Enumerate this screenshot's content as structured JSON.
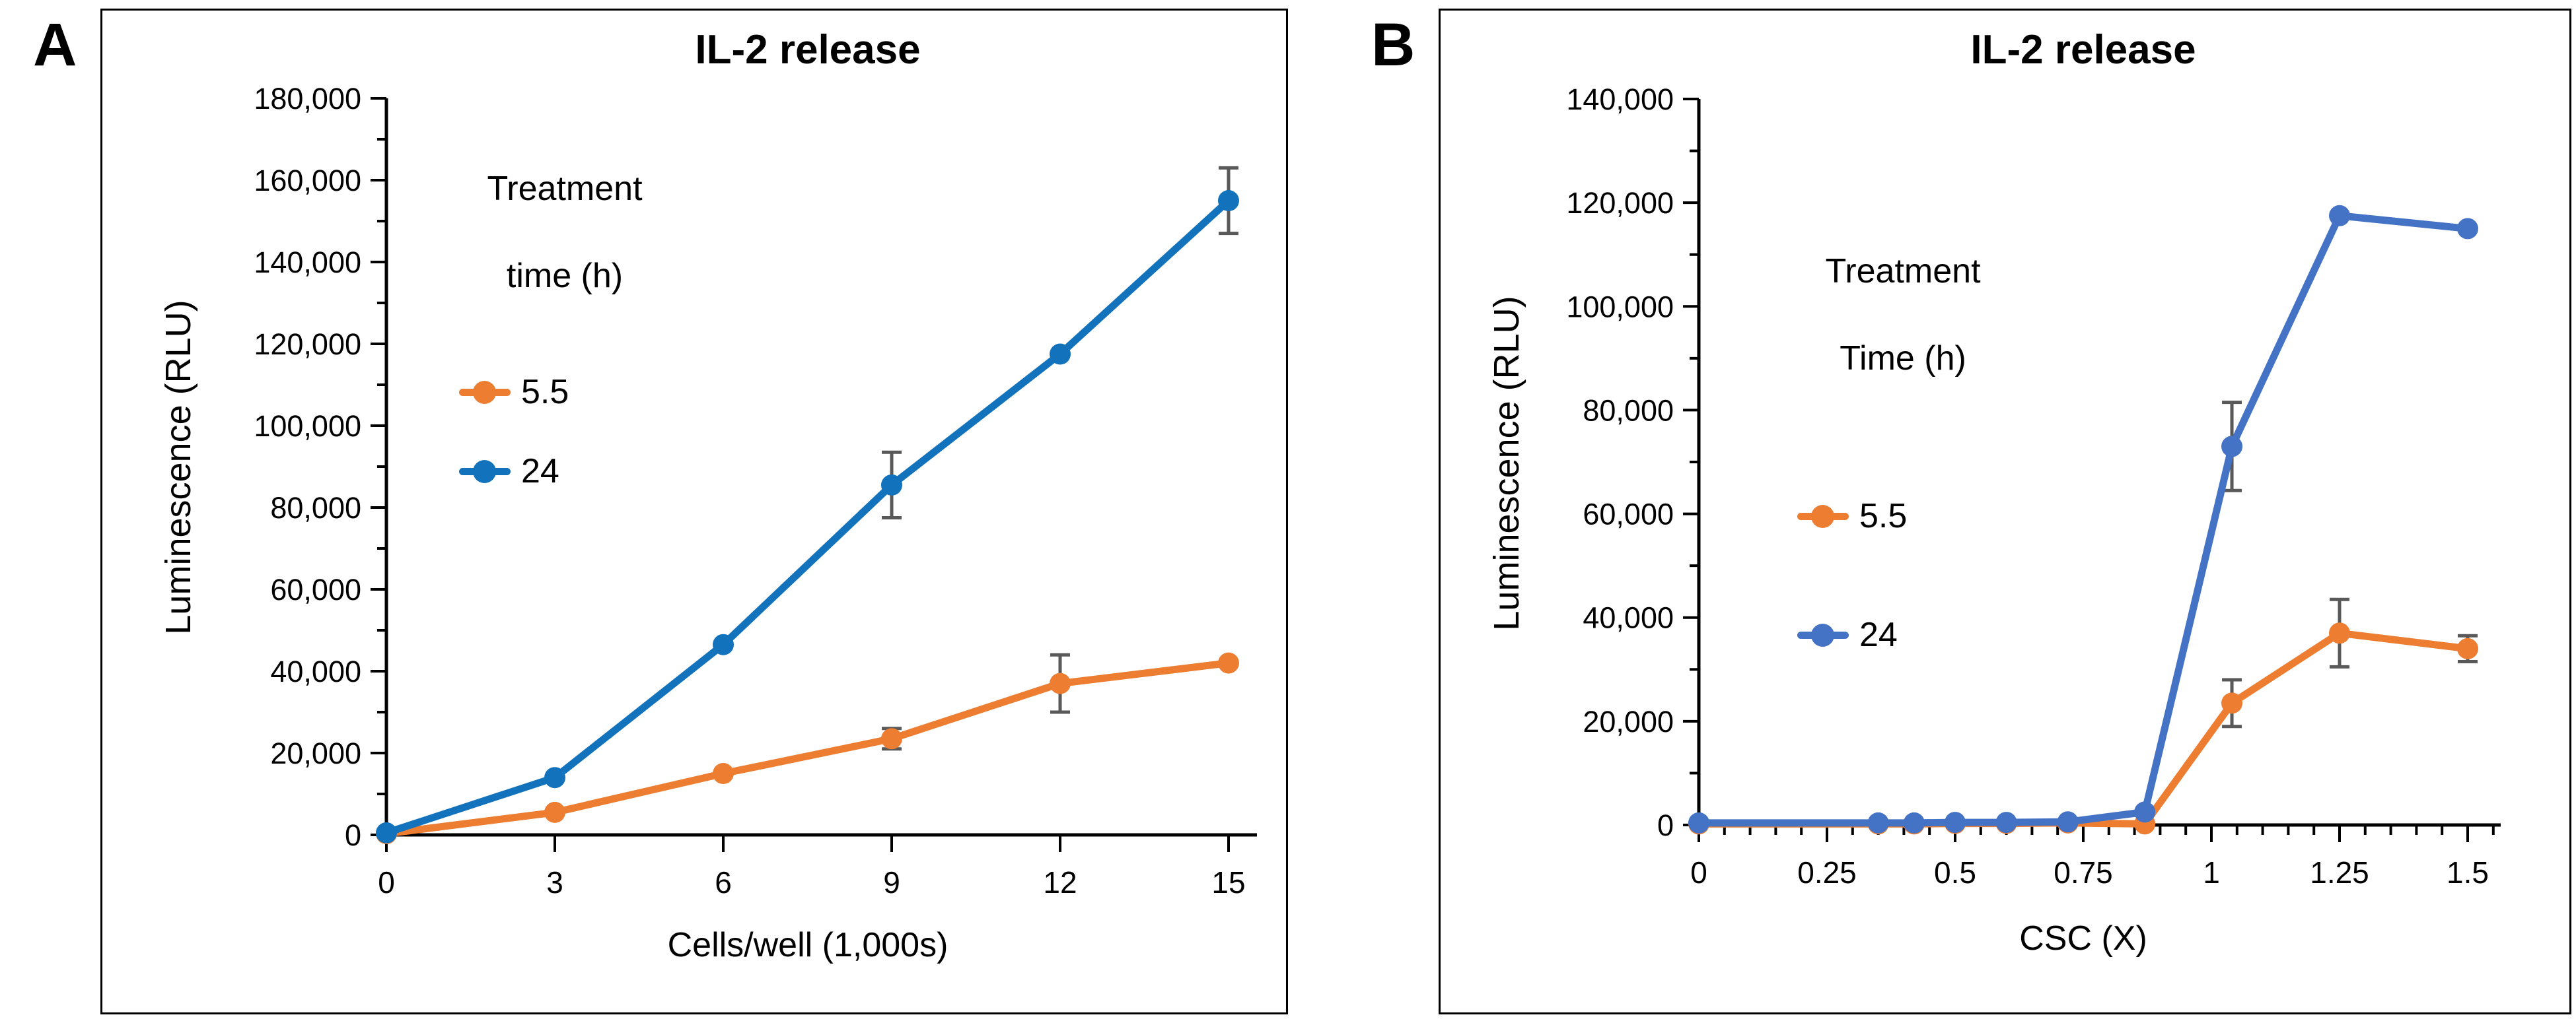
{
  "figure": {
    "background": "#ffffff",
    "panel_border_color": "#000000",
    "axis_color": "#000000"
  },
  "panels": [
    {
      "letter": "A"
    },
    {
      "letter": "B"
    }
  ],
  "chart_data": [
    {
      "panel": "A",
      "type": "line",
      "title": "IL-2 release",
      "xlabel": "Cells/well (1,000s)",
      "ylabel": "Luminescence (RLU)",
      "xlim": [
        0,
        15
      ],
      "ylim": [
        0,
        180000
      ],
      "x_ticks": [
        0,
        3,
        6,
        9,
        12,
        15
      ],
      "x_tick_labels": [
        "0",
        "3",
        "6",
        "9",
        "12",
        "15"
      ],
      "x_minor_step": null,
      "y_major_step": 20000,
      "y_minor_step": 10000,
      "grid": false,
      "error_bar_color": "#595959",
      "legend": {
        "position": "upper-left-inside",
        "title_lines": [
          "Treatment",
          "time (h)"
        ],
        "items": [
          {
            "label": "5.5"
          },
          {
            "label": "24"
          }
        ]
      },
      "series": [
        {
          "name": "5.5",
          "color": "#ED7D31",
          "x": [
            0,
            3,
            6,
            9,
            12,
            15
          ],
          "y": [
            300,
            5500,
            15000,
            23500,
            37000,
            42000
          ],
          "err": [
            0,
            0,
            0,
            2500,
            7000,
            0
          ]
        },
        {
          "name": "24",
          "color": "#1272BC",
          "x": [
            0,
            3,
            6,
            9,
            12,
            15
          ],
          "y": [
            500,
            14000,
            46500,
            85500,
            117500,
            155000
          ],
          "err": [
            0,
            0,
            0,
            8000,
            0,
            8000
          ]
        }
      ]
    },
    {
      "panel": "B",
      "type": "line",
      "title": "IL-2 release",
      "xlabel": "CSC (X)",
      "ylabel": "Luminescence (RLU)",
      "xlim": [
        0,
        1.5
      ],
      "ylim": [
        0,
        140000
      ],
      "x_ticks": [
        0,
        0.25,
        0.5,
        0.75,
        1,
        1.25,
        1.5
      ],
      "x_tick_labels": [
        "0",
        "0.25",
        "0.5",
        "0.75",
        "1",
        "1.25",
        "1.5"
      ],
      "x_minor_step": 0.05,
      "y_major_step": 20000,
      "y_minor_step": 10000,
      "grid": false,
      "error_bar_color": "#595959",
      "legend": {
        "position": "upper-left-inside",
        "title_lines": [
          "Treatment",
          "Time (h)"
        ],
        "items": [
          {
            "label": "5.5"
          },
          {
            "label": "24"
          }
        ]
      },
      "series": [
        {
          "name": "5.5",
          "color": "#ED7D31",
          "x": [
            0,
            0.35,
            0.42,
            0.5,
            0.6,
            0.72,
            0.87,
            1.04,
            1.25,
            1.5
          ],
          "y": [
            200,
            200,
            200,
            300,
            300,
            400,
            200,
            23500,
            37000,
            34000
          ],
          "err": [
            0,
            0,
            0,
            0,
            0,
            0,
            0,
            4500,
            6500,
            2500
          ]
        },
        {
          "name": "24",
          "color": "#4472C4",
          "x": [
            0,
            0.35,
            0.42,
            0.5,
            0.6,
            0.72,
            0.87,
            1.04,
            1.25,
            1.5
          ],
          "y": [
            400,
            400,
            400,
            500,
            500,
            600,
            2500,
            73000,
            117500,
            115000
          ],
          "err": [
            0,
            0,
            0,
            0,
            0,
            0,
            0,
            8500,
            0,
            0
          ]
        }
      ]
    }
  ]
}
